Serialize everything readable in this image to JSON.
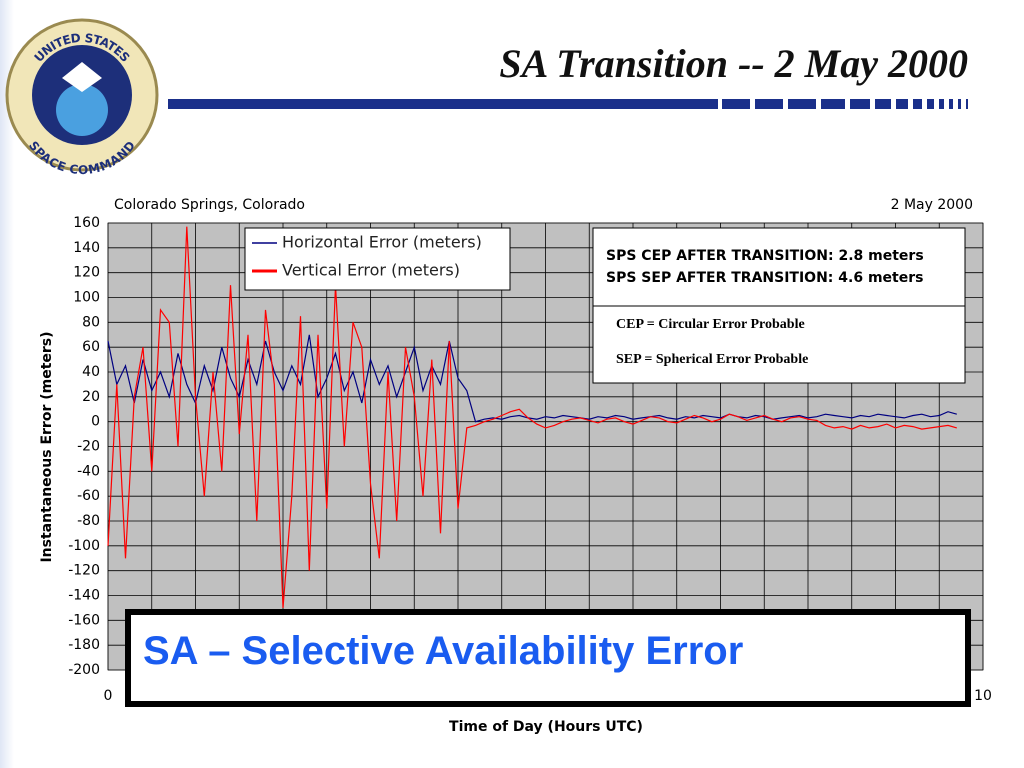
{
  "header": {
    "logo_top": "UNITED STATES",
    "logo_bottom": "SPACE COMMAND",
    "title": "SA Transition -- 2 May 2000"
  },
  "chart_data": {
    "type": "line",
    "subtitle_left": "Colorado Springs, Colorado",
    "subtitle_right": "2 May 2000",
    "y_label": "Instantaneous Error (meters)",
    "x_label": "Time of Day (Hours UTC)",
    "x": [
      0,
      0.1,
      0.2,
      0.3,
      0.4,
      0.5,
      0.6,
      0.7,
      0.8,
      0.9,
      1,
      1.1,
      1.2,
      1.3,
      1.4,
      1.5,
      1.6,
      1.7,
      1.8,
      1.9,
      2,
      2.1,
      2.2,
      2.3,
      2.4,
      2.5,
      2.6,
      2.7,
      2.8,
      2.9,
      3,
      3.1,
      3.2,
      3.3,
      3.4,
      3.5,
      3.6,
      3.7,
      3.8,
      3.9,
      4,
      4.1,
      4.2,
      4.3,
      4.4,
      4.5,
      4.6,
      4.7,
      4.8,
      4.9,
      5,
      5.1,
      5.2,
      5.3,
      5.4,
      5.5,
      5.6,
      5.7,
      5.8,
      5.9,
      6,
      6.1,
      6.2,
      6.3,
      6.4,
      6.5,
      6.6,
      6.7,
      6.8,
      6.9,
      7,
      7.1,
      7.2,
      7.3,
      7.4,
      7.5,
      7.6,
      7.7,
      7.8,
      7.9,
      8,
      8.1,
      8.2,
      8.3,
      8.4,
      8.5,
      8.6,
      8.7,
      8.8,
      8.9,
      9,
      9.1,
      9.2,
      9.3,
      9.4,
      9.5,
      9.6,
      9.7
    ],
    "series": [
      {
        "name": "Horizontal Error (meters)",
        "color": "#000080",
        "values": [
          65,
          30,
          45,
          15,
          50,
          25,
          40,
          20,
          55,
          30,
          15,
          45,
          25,
          60,
          35,
          20,
          50,
          30,
          65,
          40,
          25,
          45,
          30,
          70,
          20,
          35,
          55,
          25,
          40,
          15,
          50,
          30,
          45,
          20,
          40,
          60,
          25,
          45,
          30,
          65,
          35,
          25,
          0,
          2,
          3,
          2,
          4,
          5,
          3,
          2,
          4,
          3,
          5,
          4,
          3,
          2,
          4,
          3,
          5,
          4,
          2,
          3,
          4,
          5,
          3,
          2,
          4,
          3,
          5,
          4,
          3,
          6,
          4,
          3,
          5,
          4,
          2,
          3,
          4,
          5,
          3,
          4,
          6,
          5,
          4,
          3,
          5,
          4,
          6,
          5,
          4,
          3,
          5,
          6,
          4,
          5,
          8,
          6
        ]
      },
      {
        "name": "Vertical Error (meters)",
        "color": "#ff0000",
        "values": [
          -100,
          30,
          -110,
          20,
          60,
          -40,
          90,
          80,
          -20,
          157,
          20,
          -60,
          40,
          -40,
          110,
          -10,
          70,
          -80,
          90,
          30,
          -150,
          -60,
          85,
          -120,
          70,
          -70,
          110,
          -20,
          80,
          60,
          -50,
          -110,
          40,
          -80,
          60,
          20,
          -60,
          50,
          -90,
          65,
          -70,
          -5,
          -3,
          0,
          2,
          5,
          8,
          10,
          3,
          -2,
          -5,
          -3,
          0,
          2,
          3,
          1,
          -1,
          2,
          3,
          0,
          -2,
          1,
          4,
          3,
          0,
          -1,
          2,
          5,
          3,
          0,
          2,
          6,
          4,
          1,
          3,
          5,
          2,
          0,
          3,
          4,
          2,
          1,
          -3,
          -5,
          -4,
          -6,
          -3,
          -5,
          -4,
          -2,
          -5,
          -3,
          -4,
          -6,
          -5,
          -4,
          -3,
          -5
        ]
      }
    ],
    "xlim": [
      0,
      10
    ],
    "xticks": [
      0,
      10
    ],
    "xgrid": [
      0,
      0.5,
      1,
      1.5,
      2,
      2.5,
      3,
      3.5,
      4,
      4.5,
      5,
      5.5,
      6,
      6.5,
      7,
      7.5,
      8,
      8.5,
      9,
      9.5,
      10
    ],
    "ylim": [
      -200,
      160
    ],
    "yticks": [
      -200,
      -180,
      -160,
      -140,
      -120,
      -100,
      -80,
      -60,
      -40,
      -20,
      0,
      20,
      40,
      60,
      80,
      100,
      120,
      140,
      160
    ],
    "grid": true
  },
  "callout": {
    "sps_cep": "SPS CEP AFTER TRANSITION:  2.8 meters",
    "sps_sep": "SPS SEP AFTER TRANSITION:  4.6 meters",
    "cep_def": "CEP = Circular Error Probable",
    "sep_def": "SEP = Spherical Error Probable"
  },
  "banner": "SA – Selective Availability Error"
}
